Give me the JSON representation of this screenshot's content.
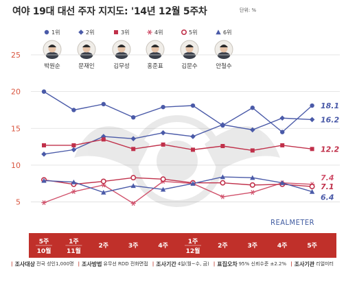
{
  "chart_data": {
    "type": "line",
    "title": "여야 19대 대선 주자 지지도: '14년 12월 5주차",
    "unit": "단위: %",
    "watermark": "REALMETER",
    "categories": [
      [
        "5주",
        "10월"
      ],
      [
        "1주",
        "11월"
      ],
      [
        "2주"
      ],
      [
        "3주"
      ],
      [
        "4주"
      ],
      [
        "1주",
        "12월"
      ],
      [
        "2주"
      ],
      [
        "3주"
      ],
      [
        "4주"
      ],
      [
        "5주"
      ]
    ],
    "ylim": [
      3,
      25
    ],
    "yticks": [
      5,
      10,
      15,
      20,
      25
    ],
    "grid": true,
    "series": [
      {
        "name": "1위",
        "candidate": "박원순",
        "color": "#4a5aa8",
        "marker": "circle",
        "values": [
          20.0,
          17.5,
          18.3,
          16.5,
          17.9,
          18.1,
          15.4,
          17.8,
          14.5,
          18.1
        ],
        "end_label": "18.1"
      },
      {
        "name": "2위",
        "candidate": "문재인",
        "color": "#4a5aa8",
        "marker": "diamond",
        "values": [
          11.5,
          12.1,
          13.9,
          13.6,
          14.4,
          13.9,
          15.5,
          14.8,
          16.4,
          16.2
        ],
        "end_label": "16.2"
      },
      {
        "name": "3위",
        "candidate": "김무성",
        "color": "#c0304a",
        "marker": "square",
        "values": [
          12.7,
          12.7,
          13.5,
          12.2,
          12.8,
          12.1,
          12.6,
          12.0,
          12.7,
          12.2
        ],
        "end_label": "12.2"
      },
      {
        "name": "4위",
        "candidate": "홍준표",
        "color": "#d0506a",
        "marker": "asterisk",
        "values": [
          4.9,
          6.4,
          7.3,
          4.8,
          7.8,
          7.5,
          5.7,
          6.3,
          7.6,
          7.4
        ],
        "end_label": "7.4"
      },
      {
        "name": "5위",
        "candidate": "김문수",
        "color": "#c0304a",
        "marker": "ring",
        "values": [
          8.0,
          7.4,
          7.8,
          8.3,
          8.1,
          7.6,
          7.6,
          7.3,
          7.4,
          7.1
        ],
        "end_label": "7.1"
      },
      {
        "name": "6위",
        "candidate": "안철수",
        "color": "#4a5aa8",
        "marker": "triangle",
        "values": [
          7.9,
          7.7,
          6.3,
          7.2,
          6.7,
          7.5,
          8.4,
          8.3,
          7.6,
          6.4
        ],
        "end_label": "6.4"
      }
    ]
  },
  "footer": {
    "target_label": "조사대상",
    "target_value": "전국 성인1,000명",
    "method_label": "조사방법",
    "method_value": "유무선 RDD 전화면접",
    "period_label": "조사기간",
    "period_value": "4일(월~수, 금)",
    "error_label": "표집오차",
    "error_value": "95% 신뢰수준 ±2.2%",
    "org_label": "조사기관",
    "org_value": "리얼미터"
  },
  "colors": {
    "band": "#c0302a",
    "grid": "#dddddd",
    "axis_text": "#d9553f"
  }
}
